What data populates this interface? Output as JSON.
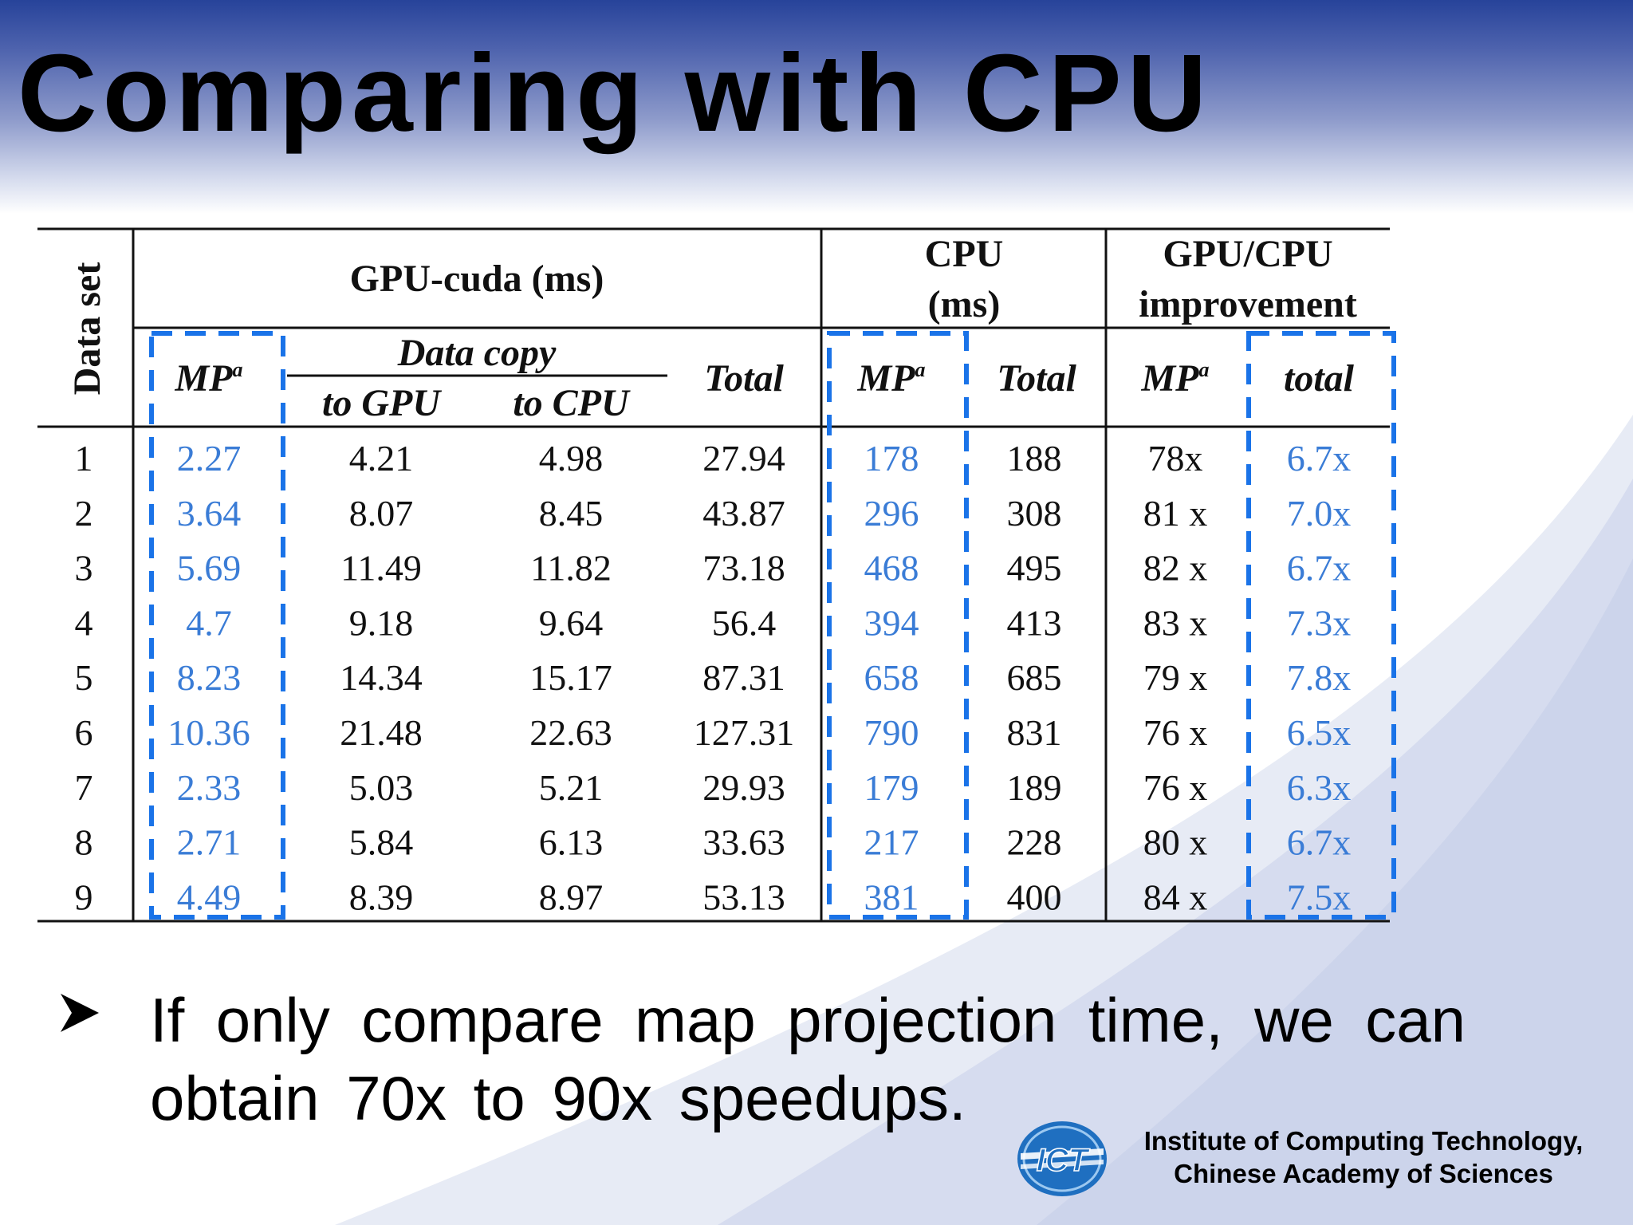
{
  "slide": {
    "title": "Comparing with CPU",
    "bullet": "If only compare map projection time, we can obtain 70x to 90x speedups.",
    "footer": {
      "institution_line1": "Institute  of Computing Technology,",
      "institution_line2": "Chinese Academy of  Sciences",
      "logo_text": "ICT"
    }
  },
  "table": {
    "headers": {
      "dataset": "Data set",
      "gpu_group": "GPU-cuda (ms)",
      "cpu_group_line1": "CPU",
      "cpu_group_line2": "(ms)",
      "ratio_group_line1": "GPU/CPU",
      "ratio_group_line2": "improvement",
      "mp": "MP",
      "mp_sup": "a",
      "data_copy": "Data copy",
      "to_gpu": "to GPU",
      "to_cpu": "to CPU",
      "total": "Total",
      "total_lower": "total"
    },
    "rows": [
      {
        "set": "1",
        "gpu_mp": "2.27",
        "to_gpu": "4.21",
        "to_cpu": "4.98",
        "gpu_total": "27.94",
        "cpu_mp": "178",
        "cpu_total": "188",
        "ratio_mp": "78x",
        "ratio_total": "6.7x"
      },
      {
        "set": "2",
        "gpu_mp": "3.64",
        "to_gpu": "8.07",
        "to_cpu": "8.45",
        "gpu_total": "43.87",
        "cpu_mp": "296",
        "cpu_total": "308",
        "ratio_mp": "81 x",
        "ratio_total": "7.0x"
      },
      {
        "set": "3",
        "gpu_mp": "5.69",
        "to_gpu": "11.49",
        "to_cpu": "11.82",
        "gpu_total": "73.18",
        "cpu_mp": "468",
        "cpu_total": "495",
        "ratio_mp": "82 x",
        "ratio_total": "6.7x"
      },
      {
        "set": "4",
        "gpu_mp": "4.7",
        "to_gpu": "9.18",
        "to_cpu": "9.64",
        "gpu_total": "56.4",
        "cpu_mp": "394",
        "cpu_total": "413",
        "ratio_mp": "83 x",
        "ratio_total": "7.3x"
      },
      {
        "set": "5",
        "gpu_mp": "8.23",
        "to_gpu": "14.34",
        "to_cpu": "15.17",
        "gpu_total": "87.31",
        "cpu_mp": "658",
        "cpu_total": "685",
        "ratio_mp": "79 x",
        "ratio_total": "7.8x"
      },
      {
        "set": "6",
        "gpu_mp": "10.36",
        "to_gpu": "21.48",
        "to_cpu": "22.63",
        "gpu_total": "127.31",
        "cpu_mp": "790",
        "cpu_total": "831",
        "ratio_mp": "76 x",
        "ratio_total": "6.5x"
      },
      {
        "set": "7",
        "gpu_mp": "2.33",
        "to_gpu": "5.03",
        "to_cpu": "5.21",
        "gpu_total": "29.93",
        "cpu_mp": "179",
        "cpu_total": "189",
        "ratio_mp": "76 x",
        "ratio_total": "6.3x"
      },
      {
        "set": "8",
        "gpu_mp": "2.71",
        "to_gpu": "5.84",
        "to_cpu": "6.13",
        "gpu_total": "33.63",
        "cpu_mp": "217",
        "cpu_total": "228",
        "ratio_mp": "80 x",
        "ratio_total": "6.7x"
      },
      {
        "set": "9",
        "gpu_mp": "4.49",
        "to_gpu": "8.39",
        "to_cpu": "8.97",
        "gpu_total": "53.13",
        "cpu_mp": "381",
        "cpu_total": "400",
        "ratio_mp": "84 x",
        "ratio_total": "7.5x"
      }
    ]
  },
  "colors": {
    "title_band": "#27439a",
    "highlight": "#1a73e8",
    "highlight_text": "#3a7cd6",
    "logo": "#1f6fc0"
  }
}
